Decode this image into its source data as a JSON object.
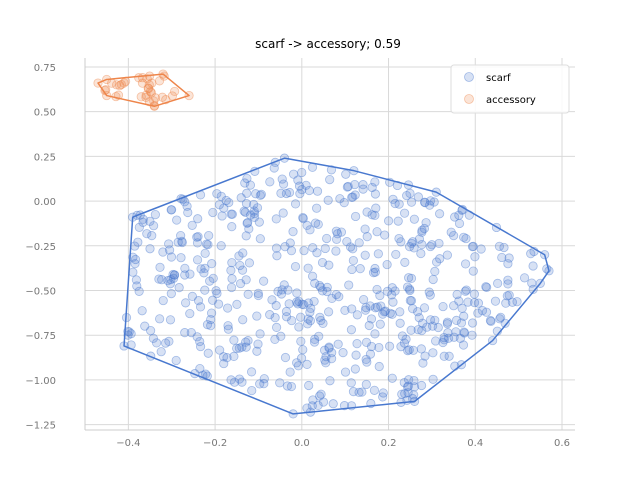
{
  "chart_data": {
    "type": "scatter",
    "title": "scarf -> accessory; 0.59",
    "xlabel": "",
    "ylabel": "",
    "xlim": [
      -0.5,
      0.63
    ],
    "ylim": [
      -1.28,
      0.8
    ],
    "xticks": [
      -0.4,
      -0.2,
      0.0,
      0.2,
      0.4,
      0.6
    ],
    "xtick_labels": [
      "−0.4",
      "−0.2",
      "0.0",
      "0.2",
      "0.4",
      "0.6"
    ],
    "yticks": [
      0.75,
      0.5,
      0.25,
      0.0,
      -0.25,
      -0.5,
      -0.75,
      -1.0,
      -1.25
    ],
    "ytick_labels": [
      "0.75",
      "0.50",
      "0.25",
      "0.00",
      "−0.25",
      "−0.50",
      "−0.75",
      "−1.00",
      "−1.25"
    ],
    "grid": true,
    "legend_position": "top-right",
    "series": [
      {
        "name": "scarf",
        "color": "#4878cf",
        "point_count": 600,
        "hull": [
          [
            -0.04,
            0.24
          ],
          [
            0.12,
            0.17
          ],
          [
            0.31,
            0.05
          ],
          [
            0.56,
            -0.3
          ],
          [
            0.57,
            -0.39
          ],
          [
            0.55,
            -0.46
          ],
          [
            0.44,
            -0.78
          ],
          [
            0.26,
            -1.12
          ],
          [
            0.02,
            -1.18
          ],
          [
            -0.02,
            -1.19
          ],
          [
            -0.41,
            -0.81
          ],
          [
            -0.39,
            -0.09
          ],
          [
            -0.38,
            -0.08
          ]
        ]
      },
      {
        "name": "accessory",
        "color": "#ee854a",
        "point_count": 40,
        "hull": [
          [
            -0.47,
            0.66
          ],
          [
            -0.45,
            0.68
          ],
          [
            -0.32,
            0.71
          ],
          [
            -0.26,
            0.59
          ],
          [
            -0.34,
            0.53
          ],
          [
            -0.45,
            0.59
          ]
        ]
      }
    ]
  }
}
